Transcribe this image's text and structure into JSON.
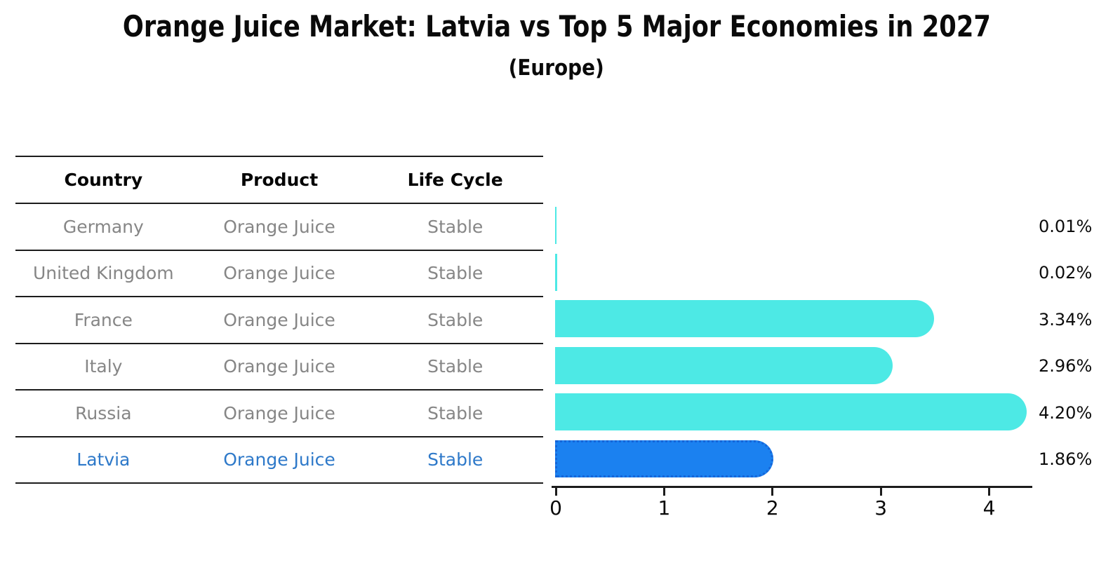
{
  "title": "Orange Juice Market: Latvia vs Top 5 Major Economies in 2027",
  "subtitle": "(Europe)",
  "table": {
    "headers": [
      "Country",
      "Product",
      "Life Cycle"
    ],
    "rows": [
      {
        "country": "Germany",
        "product": "Orange Juice",
        "life_cycle": "Stable",
        "highlighted": false
      },
      {
        "country": "United Kingdom",
        "product": "Orange Juice",
        "life_cycle": "Stable",
        "highlighted": false
      },
      {
        "country": "France",
        "product": "Orange Juice",
        "life_cycle": "Stable",
        "highlighted": false
      },
      {
        "country": "Italy",
        "product": "Orange Juice",
        "life_cycle": "Stable",
        "highlighted": false
      },
      {
        "country": "Russia",
        "product": "Orange Juice",
        "life_cycle": "Stable",
        "highlighted": false
      },
      {
        "country": "Latvia",
        "product": "Orange Juice",
        "life_cycle": "Stable",
        "highlighted": true
      }
    ]
  },
  "chart_data": {
    "type": "bar",
    "orientation": "horizontal",
    "title": "Orange Juice Market: Latvia vs Top 5 Major Economies in 2027",
    "subtitle": "(Europe)",
    "categories": [
      "Germany",
      "United Kingdom",
      "France",
      "Italy",
      "Russia",
      "Latvia"
    ],
    "values": [
      0.01,
      0.02,
      3.34,
      2.96,
      4.2,
      1.86
    ],
    "value_labels": [
      "0.01%",
      "0.02%",
      "3.34%",
      "2.96%",
      "4.20%",
      "1.86%"
    ],
    "x_ticks": [
      0,
      1,
      2,
      3,
      4
    ],
    "x_tick_labels": [
      "0",
      "1",
      "2",
      "3",
      "4"
    ],
    "xlim": [
      0,
      4.4
    ],
    "grid": false,
    "legend": "none",
    "highlight_index": 5,
    "colors": {
      "bar_fill": "#4de9e5",
      "highlight_fill": "#1b81f0",
      "highlight_border": "#1565d8",
      "highlight_text": "#2e79c9",
      "table_text": "#868686",
      "header_text": "#050505",
      "axis": "#1c1c1c",
      "value_text": "#0c0c0c"
    }
  }
}
